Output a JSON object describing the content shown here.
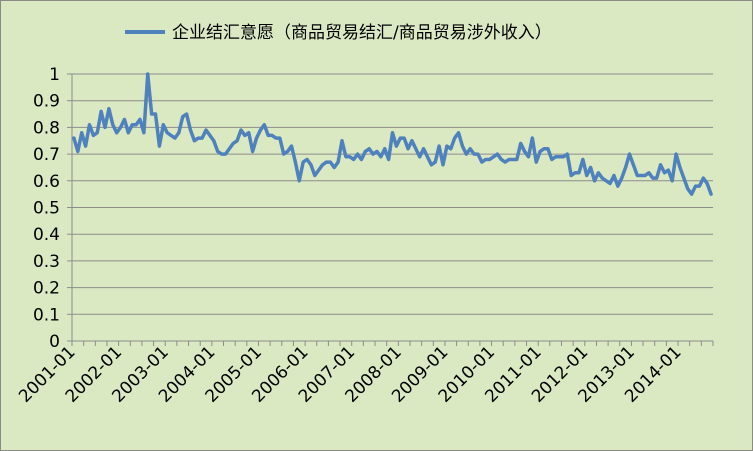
{
  "chart_data": {
    "type": "line",
    "title": "",
    "xlabel": "",
    "ylabel": "",
    "ylim": [
      0,
      1
    ],
    "yticks": [
      "0",
      "0.1",
      "0.2",
      "0.3",
      "0.4",
      "0.5",
      "0.6",
      "0.7",
      "0.8",
      "0.9",
      "1"
    ],
    "xticks": [
      "2001-01",
      "2002-01",
      "2003-01",
      "2004-01",
      "2005-01",
      "2006-01",
      "2007-01",
      "2008-01",
      "2009-01",
      "2010-01",
      "2011-01",
      "2012-01",
      "2013-01",
      "2014-01"
    ],
    "grid": "horizontal",
    "legend_position": "top",
    "x_start": "2001-01",
    "x_end": "2014-12",
    "series": [
      {
        "name": "企业结汇意愿（商品贸易结汇/商品贸易涉外收入）",
        "color": "#4f81bd",
        "values": [
          0.76,
          0.71,
          0.78,
          0.73,
          0.81,
          0.77,
          0.78,
          0.86,
          0.8,
          0.87,
          0.81,
          0.78,
          0.8,
          0.83,
          0.78,
          0.81,
          0.81,
          0.83,
          0.78,
          1.0,
          0.85,
          0.85,
          0.73,
          0.81,
          0.78,
          0.77,
          0.76,
          0.78,
          0.84,
          0.85,
          0.79,
          0.75,
          0.76,
          0.76,
          0.79,
          0.77,
          0.75,
          0.71,
          0.7,
          0.7,
          0.72,
          0.74,
          0.75,
          0.79,
          0.77,
          0.78,
          0.71,
          0.76,
          0.79,
          0.81,
          0.77,
          0.77,
          0.76,
          0.76,
          0.7,
          0.71,
          0.73,
          0.67,
          0.6,
          0.67,
          0.68,
          0.66,
          0.62,
          0.64,
          0.66,
          0.67,
          0.67,
          0.65,
          0.67,
          0.75,
          0.69,
          0.69,
          0.68,
          0.7,
          0.68,
          0.71,
          0.72,
          0.7,
          0.71,
          0.69,
          0.72,
          0.68,
          0.78,
          0.73,
          0.76,
          0.76,
          0.72,
          0.75,
          0.72,
          0.69,
          0.72,
          0.69,
          0.66,
          0.67,
          0.73,
          0.66,
          0.73,
          0.72,
          0.76,
          0.78,
          0.73,
          0.7,
          0.72,
          0.7,
          0.7,
          0.67,
          0.68,
          0.68,
          0.69,
          0.7,
          0.68,
          0.67,
          0.68,
          0.68,
          0.68,
          0.74,
          0.71,
          0.69,
          0.76,
          0.67,
          0.71,
          0.72,
          0.72,
          0.68,
          0.69,
          0.69,
          0.69,
          0.7,
          0.62,
          0.63,
          0.63,
          0.68,
          0.62,
          0.65,
          0.6,
          0.63,
          0.61,
          0.6,
          0.59,
          0.62,
          0.58,
          0.61,
          0.65,
          0.7,
          0.66,
          0.62,
          0.62,
          0.62,
          0.63,
          0.61,
          0.61,
          0.66,
          0.63,
          0.64,
          0.6,
          0.7,
          0.65,
          0.61,
          0.57,
          0.55,
          0.58,
          0.58,
          0.61,
          0.59,
          0.55
        ]
      }
    ]
  }
}
